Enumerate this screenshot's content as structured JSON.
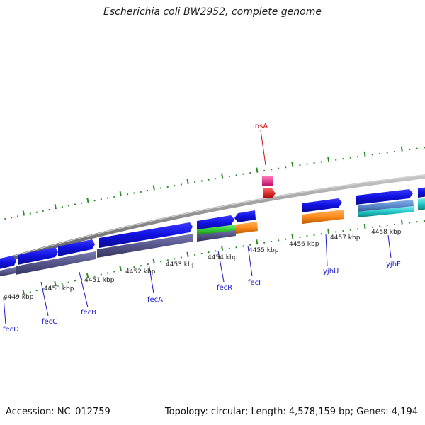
{
  "title": "Escherichia coli BW2952, complete genome",
  "footer": {
    "accession": "Accession: NC_012759",
    "summary": "Topology: circular; Length: 4,578,159 bp; Genes: 4,194"
  },
  "kbp_ticks": [
    {
      "label": "4449 kbp"
    },
    {
      "label": "4450 kbp"
    },
    {
      "label": "4451 kbp"
    },
    {
      "label": "4452 kbp"
    },
    {
      "label": "4453 kbp"
    },
    {
      "label": "4454 kbp"
    },
    {
      "label": "4455 kbp"
    },
    {
      "label": "4456 kbp"
    },
    {
      "label": "4457 kbp"
    },
    {
      "label": "4458 kbp"
    }
  ],
  "gene_labels": [
    {
      "name": "fecD",
      "color": "#1a1acc"
    },
    {
      "name": "fecC",
      "color": "#1a1acc"
    },
    {
      "name": "fecB",
      "color": "#1a1acc"
    },
    {
      "name": "fecA",
      "color": "#1a1acc"
    },
    {
      "name": "fecR",
      "color": "#1a1acc"
    },
    {
      "name": "fecI",
      "color": "#1a1acc"
    },
    {
      "name": "yjhU",
      "color": "#1a1acc"
    },
    {
      "name": "yjhF",
      "color": "#1a1acc"
    },
    {
      "name": "insA",
      "color": "#cc1111"
    }
  ],
  "colors": {
    "backbone": "#8c8c8c",
    "tick": "#2a8a2a",
    "cds": "#1010e0",
    "gene_track": "#55558a",
    "rrna_green": "#33cc33",
    "orange": "#ff8c1a",
    "teal": "#22c8c8",
    "steel": "#5a8acc",
    "pink": "#ee2288",
    "red": "#ee1111"
  }
}
